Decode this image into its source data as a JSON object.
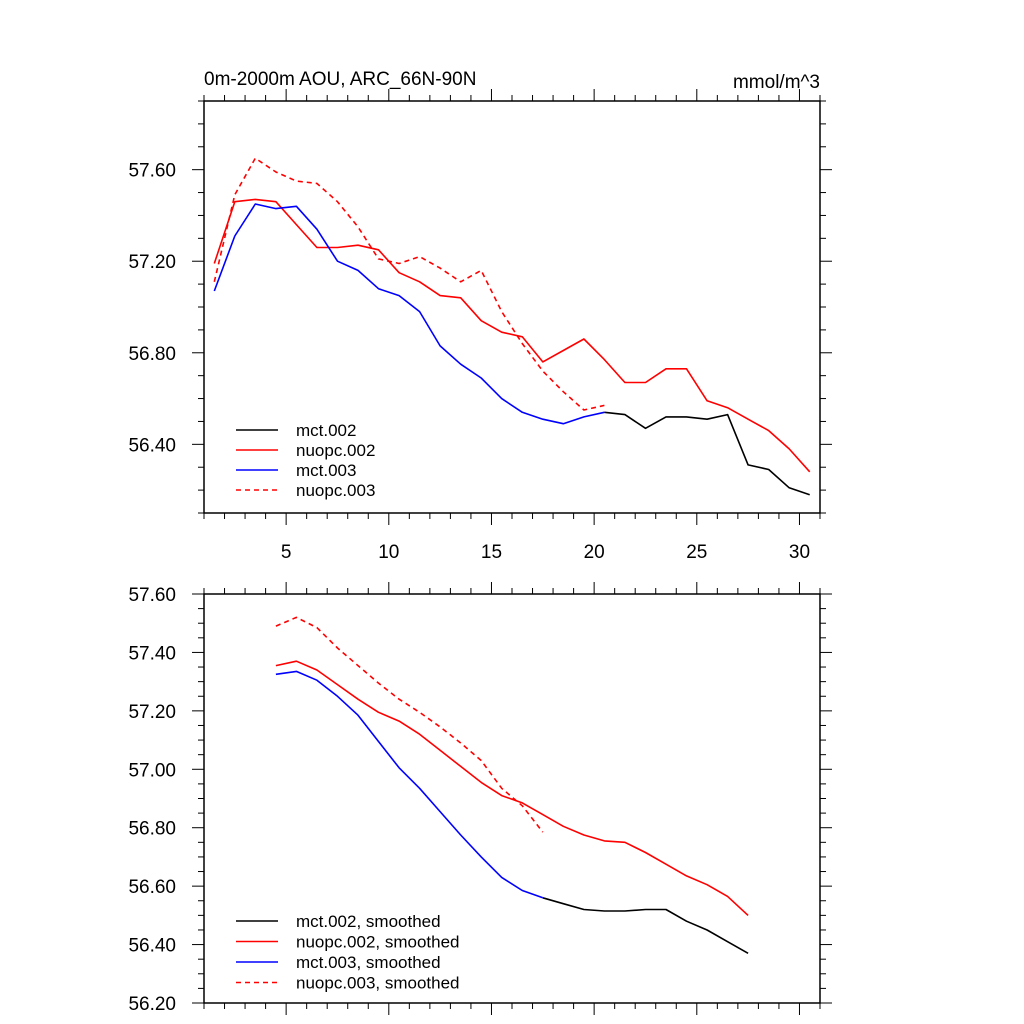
{
  "chart_data": [
    {
      "type": "line",
      "title": "0m-2000m AOU, ARC_66N-90N",
      "units": "mmol/m^3",
      "xlim": [
        1,
        31
      ],
      "ylim": [
        56.1,
        57.9
      ],
      "xticks": [
        5,
        10,
        15,
        20,
        25,
        30
      ],
      "xtick_labels": [
        "5",
        "10",
        "15",
        "20",
        "25",
        "30"
      ],
      "yticks": [
        56.4,
        56.8,
        57.2,
        57.6
      ],
      "ytick_labels": [
        "56.40",
        "56.80",
        "57.20",
        "57.60"
      ],
      "legend_position": "bottom-left",
      "series": [
        {
          "name": "mct.002",
          "color": "#000000",
          "dash": "solid",
          "x": [
            20.5,
            21.5,
            22.5,
            23.5,
            24.5,
            25.5,
            26.5,
            27.5,
            28.5,
            29.5,
            30.5
          ],
          "y": [
            56.54,
            56.53,
            56.47,
            56.52,
            56.52,
            56.51,
            56.53,
            56.31,
            56.29,
            56.21,
            56.18
          ]
        },
        {
          "name": "nuopc.002",
          "color": "#ff0000",
          "dash": "solid",
          "x": [
            1.5,
            2.5,
            3.5,
            4.5,
            5.5,
            6.5,
            7.5,
            8.5,
            9.5,
            10.5,
            11.5,
            12.5,
            13.5,
            14.5,
            15.5,
            16.5,
            17.5,
            18.5,
            19.5,
            20.5,
            21.5,
            22.5,
            23.5,
            24.5,
            25.5,
            26.5,
            27.5,
            28.5,
            29.5,
            30.5
          ],
          "y": [
            57.19,
            57.46,
            57.47,
            57.46,
            57.36,
            57.26,
            57.26,
            57.27,
            57.25,
            57.15,
            57.11,
            57.05,
            57.04,
            56.94,
            56.89,
            56.87,
            56.76,
            56.81,
            56.86,
            56.77,
            56.67,
            56.67,
            56.73,
            56.73,
            56.59,
            56.56,
            56.51,
            56.46,
            56.38,
            56.28
          ]
        },
        {
          "name": "mct.003",
          "color": "#0000ff",
          "dash": "solid",
          "x": [
            1.5,
            2.5,
            3.5,
            4.5,
            5.5,
            6.5,
            7.5,
            8.5,
            9.5,
            10.5,
            11.5,
            12.5,
            13.5,
            14.5,
            15.5,
            16.5,
            17.5,
            18.5,
            19.5,
            20.5
          ],
          "y": [
            57.07,
            57.31,
            57.45,
            57.43,
            57.44,
            57.34,
            57.2,
            57.16,
            57.08,
            57.05,
            56.98,
            56.83,
            56.75,
            56.69,
            56.6,
            56.54,
            56.51,
            56.49,
            56.52,
            56.54
          ]
        },
        {
          "name": "nuopc.003",
          "color": "#ff0000",
          "dash": "dashed",
          "x": [
            1.5,
            2.5,
            3.5,
            4.5,
            5.5,
            6.5,
            7.5,
            8.5,
            9.5,
            10.5,
            11.5,
            12.5,
            13.5,
            14.5,
            15.5,
            16.5,
            17.5,
            18.5,
            19.5,
            20.5
          ],
          "y": [
            57.11,
            57.49,
            57.65,
            57.59,
            57.55,
            57.54,
            57.46,
            57.35,
            57.21,
            57.19,
            57.22,
            57.17,
            57.11,
            57.16,
            56.98,
            56.84,
            56.72,
            56.63,
            56.55,
            56.57
          ]
        }
      ]
    },
    {
      "type": "line",
      "xlim": [
        1,
        31
      ],
      "ylim": [
        56.2,
        57.6
      ],
      "xticks": [
        5,
        10,
        15,
        20,
        25,
        30
      ],
      "yticks": [
        56.2,
        56.4,
        56.6,
        56.8,
        57.0,
        57.2,
        57.4,
        57.6
      ],
      "ytick_labels": [
        "56.20",
        "56.40",
        "56.60",
        "56.80",
        "57.00",
        "57.20",
        "57.40",
        "57.60"
      ],
      "legend_position": "bottom-left",
      "series": [
        {
          "name": "mct.002, smoothed",
          "color": "#000000",
          "dash": "solid",
          "x": [
            17.5,
            18.5,
            19.5,
            20.5,
            21.5,
            22.5,
            23.5,
            24.5,
            25.5,
            26.5,
            27.5
          ],
          "y": [
            56.56,
            56.54,
            56.52,
            56.515,
            56.515,
            56.52,
            56.52,
            56.48,
            56.45,
            56.41,
            56.37
          ]
        },
        {
          "name": "nuopc.002, smoothed",
          "color": "#ff0000",
          "dash": "solid",
          "x": [
            4.5,
            5.5,
            6.5,
            7.5,
            8.5,
            9.5,
            10.5,
            11.5,
            12.5,
            13.5,
            14.5,
            15.5,
            16.5,
            17.5,
            18.5,
            19.5,
            20.5,
            21.5,
            22.5,
            23.5,
            24.5,
            25.5,
            26.5,
            27.5
          ],
          "y": [
            57.355,
            57.37,
            57.34,
            57.29,
            57.24,
            57.195,
            57.165,
            57.12,
            57.065,
            57.01,
            56.955,
            56.91,
            56.885,
            56.845,
            56.805,
            56.775,
            56.755,
            56.75,
            56.715,
            56.675,
            56.635,
            56.605,
            56.565,
            56.5
          ]
        },
        {
          "name": "mct.003, smoothed",
          "color": "#0000ff",
          "dash": "solid",
          "x": [
            4.5,
            5.5,
            6.5,
            7.5,
            8.5,
            9.5,
            10.5,
            11.5,
            12.5,
            13.5,
            14.5,
            15.5,
            16.5,
            17.5
          ],
          "y": [
            57.325,
            57.335,
            57.305,
            57.25,
            57.185,
            57.095,
            57.005,
            56.935,
            56.855,
            56.775,
            56.7,
            56.63,
            56.585,
            56.56
          ]
        },
        {
          "name": "nuopc.003, smoothed",
          "color": "#ff0000",
          "dash": "dashed",
          "x": [
            4.5,
            5.5,
            6.5,
            7.5,
            8.5,
            9.5,
            10.5,
            11.5,
            12.5,
            13.5,
            14.5,
            15.5,
            16.5,
            17.5
          ],
          "y": [
            57.49,
            57.52,
            57.485,
            57.415,
            57.355,
            57.295,
            57.24,
            57.195,
            57.145,
            57.09,
            57.03,
            56.935,
            56.875,
            56.785
          ]
        }
      ]
    }
  ]
}
